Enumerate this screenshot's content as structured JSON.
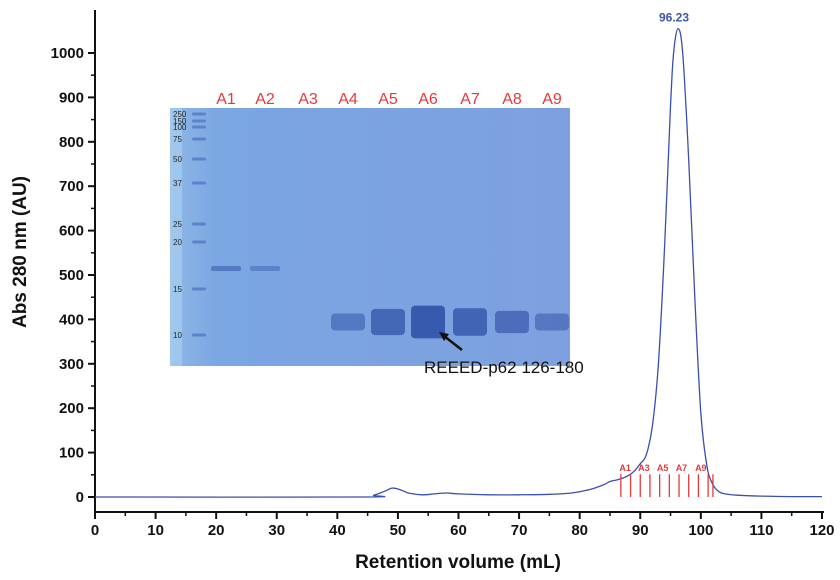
{
  "chart_data": {
    "type": "line",
    "title": "",
    "xlabel": "Retention volume (mL)",
    "ylabel": "Abs 280 nm (AU)",
    "xlim": [
      0,
      120
    ],
    "ylim": [
      -30,
      1100
    ],
    "x_ticks": [
      "0",
      "10",
      "20",
      "30",
      "40",
      "50",
      "60",
      "70",
      "80",
      "90",
      "100",
      "110",
      "120"
    ],
    "y_ticks": [
      "0",
      "100",
      "200",
      "300",
      "400",
      "500",
      "600",
      "700",
      "800",
      "900",
      "1000"
    ],
    "grid": false,
    "series": [
      {
        "color": "#3b4fb0",
        "x": [
          0,
          44,
          46,
          48,
          49,
          50,
          51,
          52,
          54,
          56,
          58,
          60,
          65,
          70,
          75,
          78,
          80,
          82,
          84,
          85,
          86,
          87,
          88,
          89,
          90,
          91,
          92,
          93,
          94,
          95,
          95.5,
          96.23,
          97,
          98,
          99,
          100,
          101,
          102,
          103,
          104,
          106,
          110,
          115,
          120
        ],
        "y": [
          0,
          0,
          4,
          14,
          20,
          18,
          13,
          8,
          5,
          7,
          9,
          7,
          5,
          5,
          6,
          8,
          12,
          18,
          28,
          35,
          38,
          42,
          48,
          58,
          75,
          95,
          160,
          300,
          560,
          880,
          1000,
          1055,
          1000,
          760,
          450,
          190,
          70,
          28,
          12,
          7,
          4,
          2,
          1,
          1
        ]
      }
    ],
    "annotations": {
      "peak_label": "96.23",
      "peak_x": 96.23,
      "peak_y": 1055
    },
    "fractions": {
      "color": "#e23a3a",
      "x": [
        86.8,
        88.4,
        90.0,
        91.6,
        93.2,
        94.8,
        96.4,
        98.0,
        99.6,
        101.2,
        102.0
      ],
      "labels": [
        {
          "text": "A1",
          "x": 87.5
        },
        {
          "text": "A3",
          "x": 90.6
        },
        {
          "text": "A5",
          "x": 93.7
        },
        {
          "text": "A7",
          "x": 96.8
        },
        {
          "text": "A9",
          "x": 100.0
        }
      ],
      "marker_top": 40
    }
  },
  "gel_inset": {
    "lanes": [
      "A1",
      "A2",
      "A3",
      "A4",
      "A5",
      "A6",
      "A7",
      "A8",
      "A9"
    ],
    "ladder": [
      "250",
      "150",
      "100",
      "75",
      "50",
      "37",
      "25",
      "20",
      "15",
      "10"
    ],
    "annotation": "REEED-p62 126-180"
  }
}
